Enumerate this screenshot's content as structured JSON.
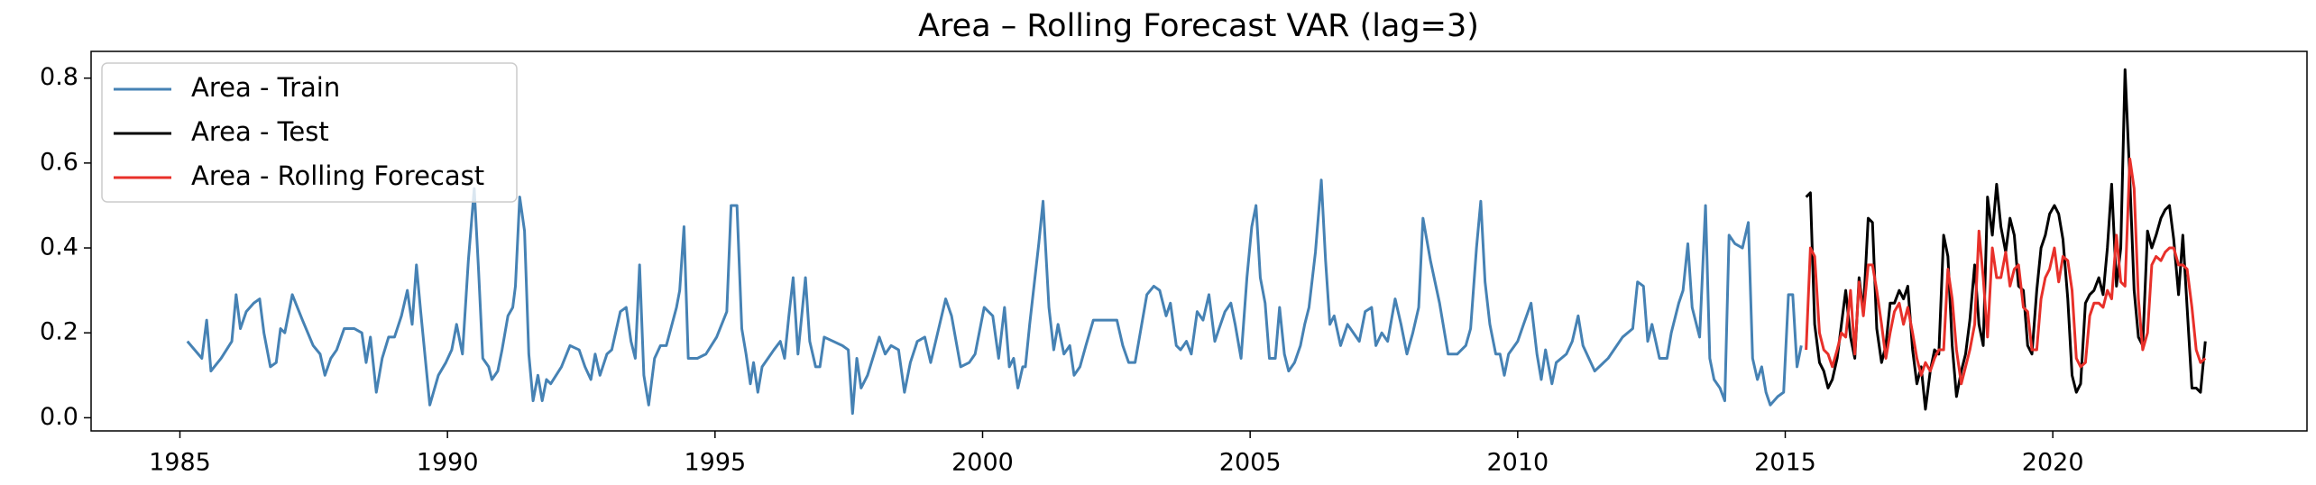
{
  "chart_data": {
    "type": "line",
    "title": "Area – Rolling Forecast VAR (lag=3)",
    "xlim": [
      1983.34,
      2024.75
    ],
    "ylim": [
      -0.031,
      0.863
    ],
    "xticks": [
      1985,
      1990,
      1995,
      2000,
      2005,
      2010,
      2015,
      2020
    ],
    "yticks": [
      {
        "value": 0,
        "label": "0.0"
      },
      0.2,
      0.4,
      0.6,
      0.8
    ],
    "grid": false,
    "legend": "upper left",
    "series": [
      {
        "name": "Area - Train",
        "color": "#4682b4",
        "x": [
          1985.14,
          1985.41,
          1985.5,
          1985.58,
          1985.77,
          1985.97,
          1986.05,
          1986.13,
          1986.24,
          1986.38,
          1986.49,
          1986.57,
          1986.69,
          1986.8,
          1986.88,
          1986.96,
          1987.1,
          1987.29,
          1987.49,
          1987.62,
          1987.71,
          1987.82,
          1987.93,
          1988.07,
          1988.26,
          1988.4,
          1988.48,
          1988.56,
          1988.67,
          1988.78,
          1988.9,
          1989.01,
          1989.14,
          1989.25,
          1989.34,
          1989.42,
          1989.5,
          1989.67,
          1989.83,
          1989.97,
          1990.08,
          1990.17,
          1990.28,
          1990.39,
          1990.5,
          1990.58,
          1990.66,
          1990.77,
          1990.83,
          1990.94,
          1991.02,
          1991.13,
          1991.22,
          1991.27,
          1991.35,
          1991.44,
          1991.52,
          1991.6,
          1991.69,
          1991.77,
          1991.85,
          1991.93,
          1992.13,
          1992.29,
          1992.46,
          1992.57,
          1992.68,
          1992.76,
          1992.85,
          1992.98,
          1993.07,
          1993.23,
          1993.34,
          1993.43,
          1993.51,
          1993.59,
          1993.67,
          1993.76,
          1993.87,
          1993.98,
          1994.09,
          1994.28,
          1994.34,
          1994.42,
          1994.5,
          1994.67,
          1994.83,
          1995.03,
          1995.22,
          1995.3,
          1995.41,
          1995.5,
          1995.58,
          1995.66,
          1995.72,
          1995.8,
          1995.88,
          1995.99,
          1996.1,
          1996.22,
          1996.3,
          1996.38,
          1996.46,
          1996.55,
          1996.69,
          1996.77,
          1996.88,
          1996.96,
          1997.04,
          1997.38,
          1997.49,
          1997.57,
          1997.65,
          1997.73,
          1997.85,
          1998.07,
          1998.18,
          1998.29,
          1998.43,
          1998.54,
          1998.65,
          1998.78,
          1998.92,
          1999.03,
          1999.31,
          1999.42,
          1999.59,
          1999.75,
          1999.86,
          2000.03,
          2000.19,
          2000.3,
          2000.41,
          2000.5,
          2000.58,
          2000.66,
          2000.75,
          2000.8,
          2000.88,
          2001.05,
          2001.13,
          2001.24,
          2001.33,
          2001.41,
          2001.52,
          2001.63,
          2001.71,
          2001.82,
          2001.93,
          2002.07,
          2002.4,
          2002.51,
          2002.62,
          2002.73,
          2002.85,
          2002.96,
          2003.07,
          2003.2,
          2003.31,
          2003.43,
          2003.51,
          2003.62,
          2003.7,
          2003.81,
          2003.9,
          2004.01,
          2004.12,
          2004.23,
          2004.34,
          2004.42,
          2004.53,
          2004.64,
          2004.72,
          2004.83,
          2004.94,
          2005.03,
          2005.11,
          2005.19,
          2005.28,
          2005.36,
          2005.47,
          2005.55,
          2005.64,
          2005.72,
          2005.83,
          2005.94,
          2006.02,
          2006.1,
          2006.22,
          2006.33,
          2006.41,
          2006.49,
          2006.57,
          2006.69,
          2006.82,
          2006.93,
          2007.04,
          2007.15,
          2007.27,
          2007.35,
          2007.46,
          2007.57,
          2007.71,
          2007.82,
          2007.93,
          2008.04,
          2008.15,
          2008.23,
          2008.37,
          2008.54,
          2008.7,
          2008.87,
          2009.03,
          2009.12,
          2009.23,
          2009.31,
          2009.39,
          2009.48,
          2009.59,
          2009.67,
          2009.75,
          2009.83,
          2010.0,
          2010.11,
          2010.25,
          2010.36,
          2010.44,
          2010.52,
          2010.64,
          2010.72,
          2010.91,
          2011.02,
          2011.13,
          2011.22,
          2011.44,
          2011.69,
          2011.96,
          2012.15,
          2012.24,
          2012.35,
          2012.43,
          2012.51,
          2012.65,
          2012.79,
          2012.87,
          2013.01,
          2013.09,
          2013.18,
          2013.26,
          2013.4,
          2013.51,
          2013.59,
          2013.67,
          2013.78,
          2013.87,
          2013.95,
          2014.06,
          2014.2,
          2014.31,
          2014.39,
          2014.48,
          2014.56,
          2014.64,
          2014.72,
          2014.86,
          2014.97,
          2015.06,
          2015.14,
          2015.22,
          2015.3
        ],
        "values": [
          0.18,
          0.14,
          0.23,
          0.11,
          0.14,
          0.18,
          0.29,
          0.21,
          0.25,
          0.27,
          0.28,
          0.2,
          0.12,
          0.13,
          0.21,
          0.2,
          0.29,
          0.23,
          0.17,
          0.15,
          0.1,
          0.14,
          0.16,
          0.21,
          0.21,
          0.2,
          0.13,
          0.19,
          0.06,
          0.14,
          0.19,
          0.19,
          0.24,
          0.3,
          0.22,
          0.36,
          0.25,
          0.03,
          0.1,
          0.13,
          0.16,
          0.22,
          0.15,
          0.37,
          0.54,
          0.35,
          0.14,
          0.12,
          0.09,
          0.11,
          0.16,
          0.24,
          0.26,
          0.31,
          0.52,
          0.44,
          0.15,
          0.04,
          0.1,
          0.04,
          0.09,
          0.08,
          0.12,
          0.17,
          0.16,
          0.12,
          0.09,
          0.15,
          0.1,
          0.15,
          0.16,
          0.25,
          0.26,
          0.18,
          0.14,
          0.36,
          0.1,
          0.03,
          0.14,
          0.17,
          0.17,
          0.26,
          0.3,
          0.45,
          0.14,
          0.14,
          0.15,
          0.19,
          0.25,
          0.5,
          0.5,
          0.21,
          0.15,
          0.08,
          0.13,
          0.06,
          0.12,
          0.14,
          0.16,
          0.18,
          0.14,
          0.24,
          0.33,
          0.15,
          0.33,
          0.18,
          0.12,
          0.12,
          0.19,
          0.17,
          0.16,
          0.01,
          0.14,
          0.07,
          0.1,
          0.19,
          0.15,
          0.17,
          0.16,
          0.06,
          0.13,
          0.18,
          0.19,
          0.13,
          0.28,
          0.24,
          0.12,
          0.13,
          0.15,
          0.26,
          0.24,
          0.14,
          0.26,
          0.12,
          0.14,
          0.07,
          0.12,
          0.12,
          0.22,
          0.41,
          0.51,
          0.26,
          0.16,
          0.22,
          0.15,
          0.17,
          0.1,
          0.12,
          0.17,
          0.23,
          0.23,
          0.23,
          0.17,
          0.13,
          0.13,
          0.21,
          0.29,
          0.31,
          0.3,
          0.24,
          0.27,
          0.17,
          0.16,
          0.18,
          0.15,
          0.25,
          0.23,
          0.29,
          0.18,
          0.21,
          0.25,
          0.27,
          0.22,
          0.14,
          0.33,
          0.45,
          0.5,
          0.33,
          0.27,
          0.14,
          0.14,
          0.26,
          0.15,
          0.11,
          0.13,
          0.17,
          0.22,
          0.26,
          0.39,
          0.56,
          0.37,
          0.22,
          0.24,
          0.17,
          0.22,
          0.2,
          0.18,
          0.25,
          0.26,
          0.17,
          0.2,
          0.18,
          0.28,
          0.22,
          0.15,
          0.2,
          0.26,
          0.47,
          0.37,
          0.27,
          0.15,
          0.15,
          0.17,
          0.21,
          0.4,
          0.51,
          0.32,
          0.22,
          0.15,
          0.15,
          0.1,
          0.15,
          0.18,
          0.22,
          0.27,
          0.15,
          0.09,
          0.16,
          0.08,
          0.13,
          0.15,
          0.18,
          0.24,
          0.17,
          0.11,
          0.14,
          0.19,
          0.21,
          0.32,
          0.31,
          0.18,
          0.22,
          0.14,
          0.14,
          0.2,
          0.27,
          0.3,
          0.41,
          0.26,
          0.19,
          0.5,
          0.14,
          0.09,
          0.07,
          0.04,
          0.43,
          0.41,
          0.4,
          0.46,
          0.14,
          0.09,
          0.12,
          0.06,
          0.03,
          0.05,
          0.06,
          0.29,
          0.29,
          0.12,
          0.17
        ]
      },
      {
        "name": "Area - Test",
        "color": "#000000",
        "x": [
          2015.39,
          2015.47,
          2015.55,
          2015.64,
          2015.72,
          2015.8,
          2015.88,
          2015.97,
          2016.05,
          2016.13,
          2016.22,
          2016.3,
          2016.38,
          2016.46,
          2016.55,
          2016.63,
          2016.71,
          2016.8,
          2016.88,
          2016.96,
          2017.04,
          2017.13,
          2017.21,
          2017.29,
          2017.38,
          2017.46,
          2017.54,
          2017.62,
          2017.71,
          2017.79,
          2017.87,
          2017.96,
          2018.04,
          2018.12,
          2018.2,
          2018.29,
          2018.37,
          2018.45,
          2018.54,
          2018.62,
          2018.7,
          2018.78,
          2018.87,
          2018.95,
          2019.03,
          2019.12,
          2019.2,
          2019.28,
          2019.36,
          2019.45,
          2019.53,
          2019.61,
          2019.7,
          2019.78,
          2019.86,
          2019.94,
          2020.03,
          2020.11,
          2020.19,
          2020.28,
          2020.36,
          2020.44,
          2020.52,
          2020.61,
          2020.69,
          2020.77,
          2020.86,
          2020.94,
          2021.02,
          2021.1,
          2021.19,
          2021.27,
          2021.35,
          2021.44,
          2021.52,
          2021.6,
          2021.68,
          2021.77,
          2021.85,
          2021.93,
          2022.02,
          2022.1,
          2022.18,
          2022.26,
          2022.35,
          2022.43,
          2022.51,
          2022.6,
          2022.68,
          2022.76,
          2022.85
        ],
        "values": [
          0.52,
          0.53,
          0.22,
          0.13,
          0.11,
          0.07,
          0.09,
          0.14,
          0.22,
          0.3,
          0.19,
          0.14,
          0.33,
          0.25,
          0.47,
          0.46,
          0.21,
          0.13,
          0.17,
          0.27,
          0.27,
          0.3,
          0.28,
          0.31,
          0.16,
          0.08,
          0.12,
          0.02,
          0.11,
          0.16,
          0.15,
          0.43,
          0.38,
          0.17,
          0.05,
          0.11,
          0.15,
          0.23,
          0.36,
          0.22,
          0.17,
          0.52,
          0.43,
          0.55,
          0.45,
          0.39,
          0.47,
          0.43,
          0.31,
          0.3,
          0.17,
          0.15,
          0.3,
          0.4,
          0.43,
          0.48,
          0.5,
          0.48,
          0.42,
          0.28,
          0.1,
          0.06,
          0.08,
          0.27,
          0.29,
          0.3,
          0.33,
          0.29,
          0.4,
          0.55,
          0.31,
          0.4,
          0.82,
          0.56,
          0.3,
          0.19,
          0.17,
          0.44,
          0.4,
          0.43,
          0.47,
          0.49,
          0.5,
          0.42,
          0.29,
          0.43,
          0.26,
          0.07,
          0.07,
          0.06,
          0.18
        ]
      },
      {
        "name": "Area - Rolling Forecast",
        "color": "#e8302a",
        "x": [
          2015.39,
          2015.47,
          2015.55,
          2015.64,
          2015.72,
          2015.8,
          2015.88,
          2015.97,
          2016.05,
          2016.13,
          2016.22,
          2016.3,
          2016.38,
          2016.46,
          2016.55,
          2016.63,
          2016.71,
          2016.8,
          2016.88,
          2016.96,
          2017.04,
          2017.13,
          2017.21,
          2017.29,
          2017.38,
          2017.46,
          2017.54,
          2017.62,
          2017.71,
          2017.79,
          2017.87,
          2017.96,
          2018.04,
          2018.12,
          2018.2,
          2018.29,
          2018.37,
          2018.45,
          2018.54,
          2018.62,
          2018.7,
          2018.78,
          2018.87,
          2018.95,
          2019.03,
          2019.12,
          2019.2,
          2019.28,
          2019.36,
          2019.45,
          2019.53,
          2019.61,
          2019.7,
          2019.78,
          2019.86,
          2019.94,
          2020.03,
          2020.11,
          2020.19,
          2020.28,
          2020.36,
          2020.44,
          2020.52,
          2020.61,
          2020.69,
          2020.77,
          2020.86,
          2020.94,
          2021.02,
          2021.1,
          2021.19,
          2021.27,
          2021.35,
          2021.44,
          2021.52,
          2021.6,
          2021.68,
          2021.77,
          2021.85,
          2021.93,
          2022.02,
          2022.1,
          2022.18,
          2022.26,
          2022.35,
          2022.43,
          2022.51,
          2022.6,
          2022.68,
          2022.76,
          2022.85
        ],
        "values": [
          0.16,
          0.4,
          0.38,
          0.2,
          0.16,
          0.15,
          0.12,
          0.16,
          0.2,
          0.19,
          0.3,
          0.15,
          0.32,
          0.24,
          0.36,
          0.36,
          0.3,
          0.22,
          0.14,
          0.2,
          0.25,
          0.27,
          0.22,
          0.26,
          0.2,
          0.14,
          0.1,
          0.13,
          0.11,
          0.14,
          0.16,
          0.16,
          0.35,
          0.28,
          0.16,
          0.08,
          0.12,
          0.16,
          0.22,
          0.44,
          0.33,
          0.19,
          0.4,
          0.33,
          0.33,
          0.39,
          0.31,
          0.35,
          0.36,
          0.26,
          0.25,
          0.16,
          0.16,
          0.28,
          0.33,
          0.35,
          0.4,
          0.32,
          0.38,
          0.37,
          0.3,
          0.14,
          0.12,
          0.13,
          0.24,
          0.27,
          0.27,
          0.26,
          0.3,
          0.28,
          0.43,
          0.32,
          0.31,
          0.61,
          0.54,
          0.28,
          0.16,
          0.2,
          0.36,
          0.38,
          0.37,
          0.39,
          0.4,
          0.4,
          0.36,
          0.36,
          0.35,
          0.26,
          0.16,
          0.13,
          0.14
        ]
      }
    ]
  }
}
